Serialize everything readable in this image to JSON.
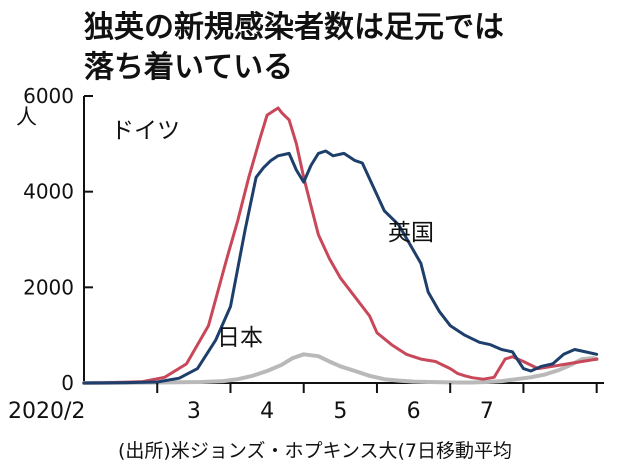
{
  "title": {
    "line1": "独英の新規感染者数は足元では",
    "line2": "落ち着いている"
  },
  "source": "(出所)米ジョンズ・ホプキンス大(7日移動平均",
  "colors": {
    "germany": "#c8485a",
    "uk": "#1e3f6b",
    "japan": "#b9b9b9"
  },
  "chart_data": {
    "type": "line",
    "title": "独英の新規感染者数は足元では落ち着いている",
    "ylabel": "人",
    "ylim": [
      0,
      6000
    ],
    "yticks": [
      "6000",
      "4000",
      "2000",
      "0"
    ],
    "xtick_labels": [
      "2020/2",
      "3",
      "4",
      "5",
      "6",
      "7"
    ],
    "x_domain": [
      1,
      8.1
    ],
    "grid": false,
    "series": [
      {
        "name": "ドイツ",
        "color": "#c8485a",
        "x": [
          1.0,
          1.3,
          1.8,
          2.1,
          2.4,
          2.7,
          2.95,
          3.1,
          3.25,
          3.4,
          3.5,
          3.6,
          3.65,
          3.7,
          3.8,
          3.9,
          4.0,
          4.1,
          4.2,
          4.35,
          4.5,
          4.7,
          4.9,
          5.0,
          5.2,
          5.4,
          5.6,
          5.8,
          6.0,
          6.1,
          6.2,
          6.3,
          6.45,
          6.6,
          6.75,
          6.85,
          7.0,
          7.2,
          7.4,
          7.6,
          7.8,
          8.0
        ],
        "y": [
          0,
          5,
          30,
          120,
          400,
          1200,
          2600,
          3400,
          4300,
          5100,
          5600,
          5700,
          5750,
          5650,
          5500,
          5000,
          4300,
          3700,
          3100,
          2600,
          2200,
          1800,
          1400,
          1050,
          800,
          600,
          500,
          450,
          300,
          200,
          150,
          110,
          80,
          120,
          500,
          550,
          450,
          300,
          350,
          400,
          450,
          500
        ]
      },
      {
        "name": "英国",
        "color": "#1e3f6b",
        "x": [
          1.0,
          1.5,
          2.0,
          2.3,
          2.55,
          2.8,
          3.0,
          3.2,
          3.35,
          3.45,
          3.55,
          3.65,
          3.8,
          3.9,
          4.0,
          4.1,
          4.2,
          4.3,
          4.4,
          4.55,
          4.7,
          4.8,
          4.95,
          5.1,
          5.3,
          5.45,
          5.6,
          5.7,
          5.85,
          6.0,
          6.2,
          6.4,
          6.55,
          6.7,
          6.85,
          7.0,
          7.1,
          7.25,
          7.4,
          7.55,
          7.7,
          7.85,
          8.0
        ],
        "y": [
          0,
          5,
          20,
          100,
          300,
          900,
          1600,
          3200,
          4300,
          4500,
          4650,
          4750,
          4800,
          4450,
          4200,
          4550,
          4800,
          4850,
          4750,
          4800,
          4650,
          4600,
          4100,
          3600,
          3300,
          2900,
          2500,
          1900,
          1500,
          1200,
          1000,
          850,
          800,
          700,
          650,
          300,
          250,
          350,
          400,
          600,
          700,
          650,
          600
        ]
      },
      {
        "name": "日本",
        "color": "#b9b9b9",
        "x": [
          1.0,
          1.5,
          2.0,
          2.3,
          2.6,
          2.9,
          3.1,
          3.3,
          3.5,
          3.7,
          3.85,
          4.0,
          4.2,
          4.35,
          4.5,
          4.7,
          4.9,
          5.1,
          5.3,
          5.5,
          5.7,
          5.9,
          6.1,
          6.3,
          6.5,
          6.7,
          6.9,
          7.1,
          7.3,
          7.5,
          7.65,
          7.8,
          7.95,
          8.0
        ],
        "y": [
          0,
          5,
          10,
          15,
          20,
          40,
          80,
          150,
          250,
          380,
          520,
          600,
          560,
          450,
          350,
          250,
          150,
          80,
          50,
          30,
          20,
          15,
          10,
          10,
          20,
          40,
          80,
          120,
          180,
          280,
          380,
          500,
          520,
          500
        ]
      }
    ]
  }
}
